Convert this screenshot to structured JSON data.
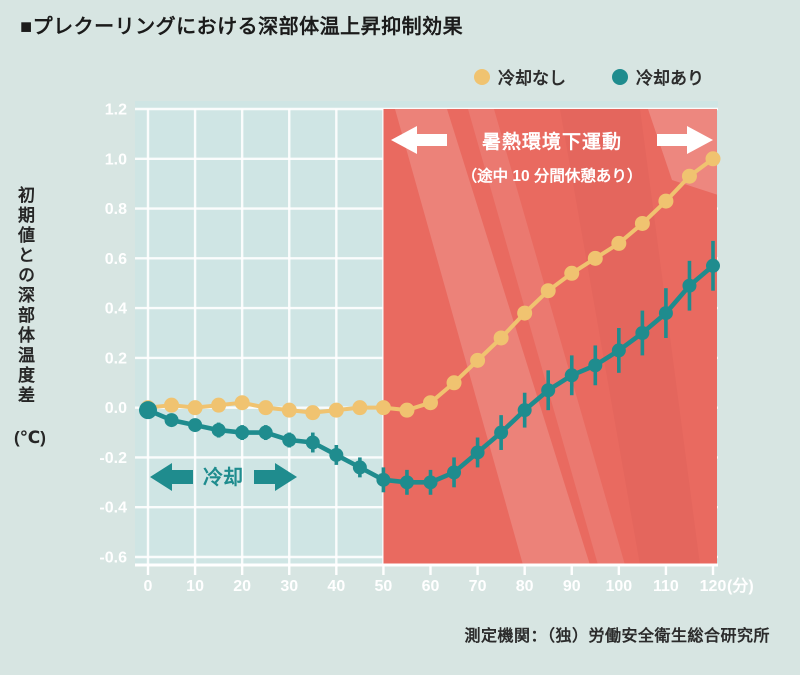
{
  "page": {
    "title": "■プレクーリングにおける深部体温上昇抑制効果",
    "source": "測定機関：（独）労働安全衛生総合研究所"
  },
  "legend": {
    "no_cooling_label": "冷却なし",
    "cooling_label": "冷却あり"
  },
  "colors": {
    "page_background": "#d7e5e2",
    "plot_background": "#cfe5e4",
    "grid": "#ffffff",
    "no_cooling": "#f0c370",
    "cooling": "#1f8c8e",
    "exercise_region": "#e96a60",
    "axis_text": "#ffffff",
    "dark_text": "#2b2b2b"
  },
  "chart_data": {
    "type": "line",
    "title": "プレクーリングにおける深部体温上昇抑制効果",
    "ylabel": "初期値との深部体温度差",
    "ylabel_unit": "(℃)",
    "xlabel_unit": "(分)",
    "ylim": [
      -0.6,
      1.2
    ],
    "y_ticks": [
      "1.2",
      "1.0",
      "0.8",
      "0.6",
      "0.4",
      "0.2",
      "0.0",
      "-0.2",
      "-0.4",
      "-0.6"
    ],
    "x_ticks": [
      "0",
      "10",
      "20",
      "30",
      "40",
      "50",
      "60",
      "70",
      "80",
      "90",
      "100",
      "110",
      "120"
    ],
    "grid": true,
    "legend_position": "top-right",
    "x": [
      0,
      5,
      10,
      15,
      20,
      25,
      30,
      35,
      40,
      45,
      50,
      55,
      60,
      65,
      70,
      75,
      80,
      85,
      90,
      95,
      100,
      105,
      110,
      115,
      120
    ],
    "series": [
      {
        "name": "冷却なし",
        "color": "#f0c370",
        "values": [
          0.0,
          0.01,
          0.0,
          0.01,
          0.02,
          0.0,
          -0.01,
          -0.02,
          -0.01,
          0.0,
          0.0,
          -0.01,
          0.02,
          0.1,
          0.19,
          0.28,
          0.38,
          0.47,
          0.54,
          0.6,
          0.66,
          0.74,
          0.83,
          0.93,
          1.0
        ]
      },
      {
        "name": "冷却あり",
        "color": "#1f8c8e",
        "values": [
          -0.01,
          -0.05,
          -0.07,
          -0.09,
          -0.1,
          -0.1,
          -0.13,
          -0.14,
          -0.19,
          -0.24,
          -0.29,
          -0.3,
          -0.3,
          -0.26,
          -0.18,
          -0.1,
          -0.01,
          0.07,
          0.13,
          0.17,
          0.23,
          0.3,
          0.38,
          0.49,
          0.57
        ],
        "errors": [
          0.02,
          0.02,
          0.02,
          0.03,
          0.03,
          0.03,
          0.03,
          0.04,
          0.04,
          0.04,
          0.05,
          0.05,
          0.05,
          0.06,
          0.06,
          0.07,
          0.07,
          0.08,
          0.08,
          0.08,
          0.09,
          0.09,
          0.1,
          0.1,
          0.1
        ]
      }
    ],
    "annotations": {
      "exercise_region": {
        "x_start": 50,
        "x_end": 120,
        "color": "#e96a60",
        "label_line1": "暑熱環境下運動",
        "label_line2": "（途中 10 分間休憩あり）"
      },
      "cooling_arrow": {
        "x_start": 0,
        "x_end": 32,
        "label": "冷却"
      }
    }
  }
}
